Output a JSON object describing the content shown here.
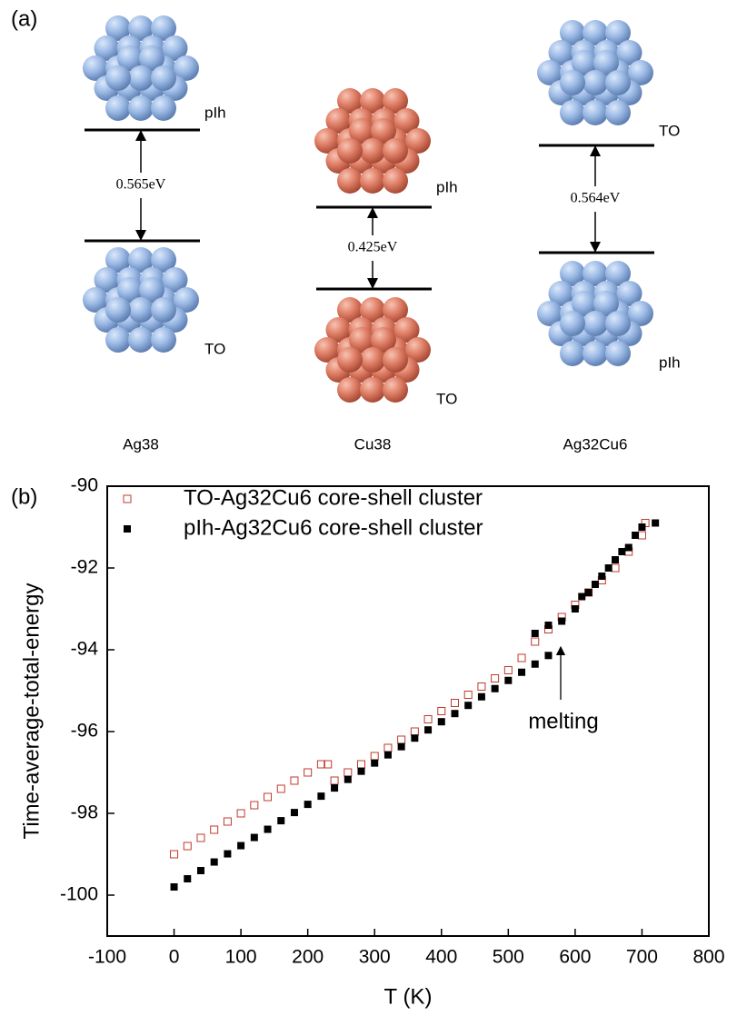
{
  "panel_a": {
    "label": "(a)",
    "columns": [
      {
        "name": "Ag38",
        "upper": "pIh",
        "lower": "TO",
        "gap": "0.565eV"
      },
      {
        "name": "Cu38",
        "upper": "pIh",
        "lower": "TO",
        "gap": "0.425eV"
      },
      {
        "name": "Ag32Cu6",
        "upper": "TO",
        "lower": "pIh",
        "gap": "0.564eV"
      }
    ]
  },
  "panel_b_label": "(b)",
  "chart_data": {
    "type": "scatter",
    "x_label": "T (K)",
    "y_label": "Time-average-total-energy",
    "annotation": "melting",
    "xlim": [
      -100,
      800
    ],
    "xticks": [
      -100,
      0,
      100,
      200,
      300,
      400,
      500,
      600,
      700,
      800
    ],
    "ylim": [
      -101,
      -90
    ],
    "yticks": [
      -100,
      -98,
      -96,
      -94,
      -92,
      -90
    ],
    "legend": "upper left",
    "series": [
      {
        "name": "TO-Ag32Cu6 core-shell cluster",
        "color": "#c0392b",
        "marker": "open-square",
        "x": [
          0,
          20,
          40,
          60,
          80,
          100,
          120,
          140,
          160,
          180,
          200,
          220,
          230,
          240,
          260,
          280,
          300,
          320,
          340,
          360,
          380,
          400,
          420,
          440,
          460,
          480,
          500,
          520,
          540,
          560,
          580,
          600,
          620,
          640,
          660,
          680,
          700,
          705
        ],
        "values": [
          -99.0,
          -98.8,
          -98.6,
          -98.4,
          -98.2,
          -98.0,
          -97.8,
          -97.6,
          -97.4,
          -97.2,
          -97.0,
          -96.8,
          -96.8,
          -97.2,
          -97.0,
          -96.8,
          -96.6,
          -96.4,
          -96.2,
          -96.0,
          -95.7,
          -95.5,
          -95.3,
          -95.1,
          -94.9,
          -94.7,
          -94.5,
          -94.2,
          -93.8,
          -93.5,
          -93.2,
          -92.9,
          -92.6,
          -92.3,
          -92.0,
          -91.6,
          -91.2,
          -90.9
        ]
      },
      {
        "name": "pIh-Ag32Cu6 core-shell cluster",
        "color": "#000000",
        "marker": "filled-square",
        "x": [
          0,
          20,
          40,
          60,
          80,
          100,
          120,
          140,
          160,
          180,
          200,
          220,
          240,
          260,
          280,
          300,
          320,
          340,
          360,
          380,
          400,
          420,
          440,
          460,
          480,
          500,
          520,
          540,
          560,
          540,
          560,
          580,
          600,
          610,
          620,
          630,
          640,
          650,
          660,
          670,
          680,
          690,
          700,
          720
        ],
        "values": [
          -99.8,
          -99.6,
          -99.4,
          -99.19,
          -98.99,
          -98.79,
          -98.59,
          -98.39,
          -98.18,
          -97.98,
          -97.78,
          -97.58,
          -97.38,
          -97.17,
          -96.97,
          -96.77,
          -96.57,
          -96.37,
          -96.16,
          -95.96,
          -95.76,
          -95.56,
          -95.36,
          -95.15,
          -94.95,
          -94.75,
          -94.55,
          -94.35,
          -94.14,
          -93.6,
          -93.4,
          -93.3,
          -93.0,
          -92.7,
          -92.6,
          -92.4,
          -92.2,
          -92.0,
          -91.8,
          -91.6,
          -91.5,
          -91.2,
          -91.0,
          -90.9
        ]
      }
    ]
  }
}
